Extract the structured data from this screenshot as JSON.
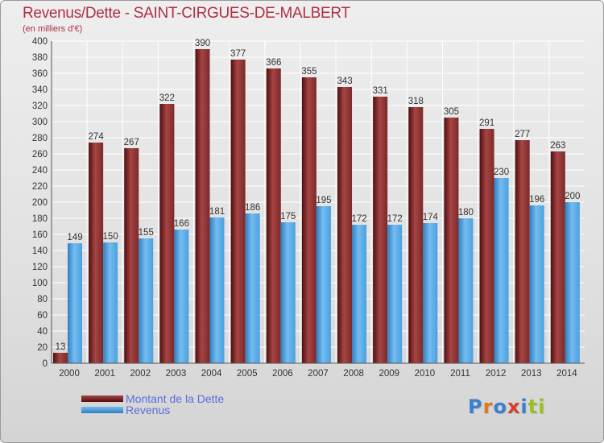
{
  "header": {
    "title": "Revenus/Dette - SAINT-CIRGUES-DE-MALBERT",
    "subtitle": "(en milliers d'€)"
  },
  "legend": {
    "debt_label": "Montant de la Dette",
    "revenue_label": "Revenus"
  },
  "logo": {
    "text": "Proxiti",
    "letter_colors": [
      "#3a7fd0",
      "#e07a1a",
      "#3a7fd0",
      "#d8402a",
      "#3a7fd0",
      "#9ac020",
      "#9ac020"
    ]
  },
  "colors": {
    "debt": "#7a2a2a",
    "debt_light": "#a84444",
    "debt_dark": "#4e0f0f",
    "revenue": "#4aa0e0",
    "revenue_light": "#74bcf0",
    "revenue_dark": "#2f7fc2",
    "grid": "#ffffff",
    "axis": "#555555",
    "text": "#333333",
    "title": "#b03045"
  },
  "chart_data": {
    "type": "bar",
    "categories": [
      "2000",
      "2001",
      "2002",
      "2003",
      "2004",
      "2005",
      "2006",
      "2007",
      "2008",
      "2009",
      "2010",
      "2011",
      "2012",
      "2013",
      "2014"
    ],
    "series": [
      {
        "name": "Montant de la Dette",
        "values": [
          13,
          274,
          267,
          322,
          390,
          377,
          366,
          355,
          343,
          331,
          318,
          305,
          291,
          277,
          263
        ]
      },
      {
        "name": "Revenus",
        "values": [
          149,
          150,
          155,
          166,
          181,
          186,
          175,
          195,
          172,
          172,
          174,
          180,
          230,
          196,
          200
        ]
      }
    ],
    "title": "Revenus/Dette - SAINT-CIRGUES-DE-MALBERT",
    "subtitle": "(en milliers d'€)",
    "ylim": [
      0,
      400
    ],
    "ytick_step": 20,
    "grid": true,
    "legend_position": "bottom-left"
  }
}
